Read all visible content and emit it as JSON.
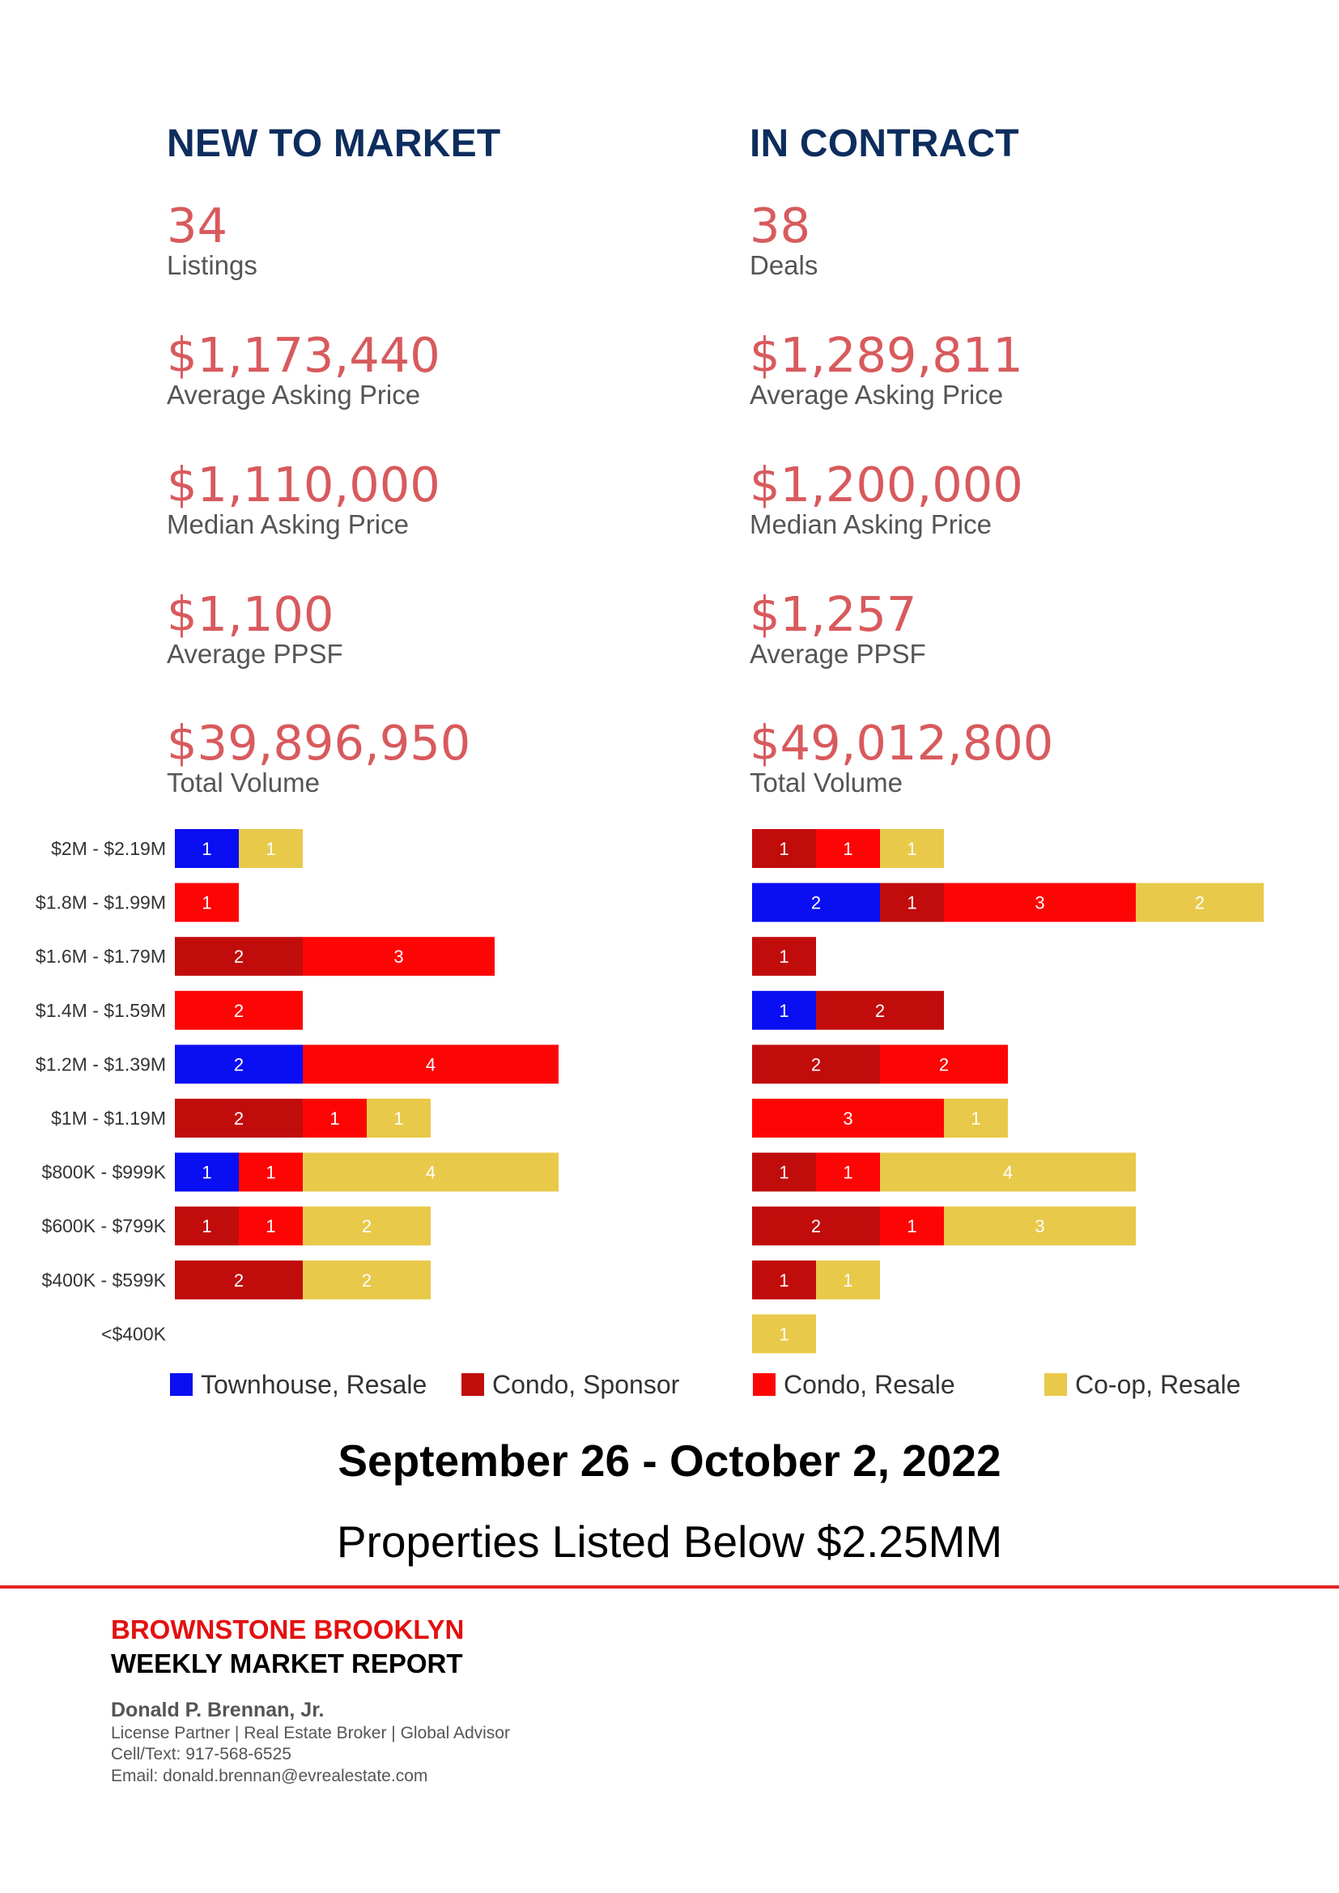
{
  "columns": [
    {
      "title": "NEW TO MARKET",
      "stats": [
        {
          "value": "34",
          "label": "Listings"
        },
        {
          "value": "$1,173,440",
          "label": "Average Asking Price"
        },
        {
          "value": "$1,110,000",
          "label": "Median Asking Price"
        },
        {
          "value": "$1,100",
          "label": "Average PPSF"
        },
        {
          "value": "$39,896,950",
          "label": "Total Volume"
        }
      ]
    },
    {
      "title": "IN CONTRACT",
      "stats": [
        {
          "value": "38",
          "label": "Deals"
        },
        {
          "value": "$1,289,811",
          "label": "Average Asking Price"
        },
        {
          "value": "$1,200,000",
          "label": "Median Asking Price"
        },
        {
          "value": "$1,257",
          "label": "Average PPSF"
        },
        {
          "value": "$49,012,800",
          "label": "Total Volume"
        }
      ]
    }
  ],
  "chart_data": [
    {
      "type": "bar",
      "orientation": "horizontal",
      "stacked": true,
      "categories": [
        "$2M - $2.19M",
        "$1.8M - $1.99M",
        "$1.6M - $1.79M",
        "$1.4M - $1.59M",
        "$1.2M - $1.39M",
        "$1M - $1.19M",
        "$800K - $999K",
        "$600K - $799K",
        "$400K - $599K",
        "<$400K"
      ],
      "series": [
        {
          "name": "Townhouse, Resale",
          "color": "#0a0ef2",
          "values": [
            1,
            0,
            0,
            0,
            2,
            0,
            1,
            0,
            0,
            0
          ]
        },
        {
          "name": "Condo, Sponsor",
          "color": "#c10c0c",
          "values": [
            0,
            0,
            2,
            0,
            0,
            2,
            0,
            1,
            2,
            0
          ]
        },
        {
          "name": "Condo, Resale",
          "color": "#fd0505",
          "values": [
            0,
            1,
            3,
            2,
            4,
            1,
            1,
            1,
            0,
            0
          ]
        },
        {
          "name": "Co-op, Resale",
          "color": "#e8c94a",
          "values": [
            1,
            0,
            0,
            0,
            0,
            1,
            4,
            2,
            2,
            0
          ]
        }
      ]
    },
    {
      "type": "bar",
      "orientation": "horizontal",
      "stacked": true,
      "categories": [
        "$2M - $2.19M",
        "$1.8M - $1.99M",
        "$1.6M - $1.79M",
        "$1.4M - $1.59M",
        "$1.2M - $1.39M",
        "$1M - $1.19M",
        "$800K - $999K",
        "$600K - $799K",
        "$400K - $599K",
        "<$400K"
      ],
      "series": [
        {
          "name": "Townhouse, Resale",
          "color": "#0a0ef2",
          "values": [
            0,
            2,
            0,
            1,
            0,
            0,
            0,
            0,
            0,
            0
          ]
        },
        {
          "name": "Condo, Sponsor",
          "color": "#c10c0c",
          "values": [
            1,
            1,
            1,
            2,
            2,
            0,
            1,
            2,
            1,
            0
          ]
        },
        {
          "name": "Condo, Resale",
          "color": "#fd0505",
          "values": [
            1,
            3,
            0,
            0,
            2,
            3,
            1,
            1,
            0,
            0
          ]
        },
        {
          "name": "Co-op, Resale",
          "color": "#e8c94a",
          "values": [
            1,
            2,
            0,
            0,
            0,
            1,
            4,
            3,
            1,
            1
          ]
        }
      ]
    }
  ],
  "legend": [
    {
      "label": "Townhouse, Resale",
      "color": "#0a0ef2"
    },
    {
      "label": "Condo, Sponsor",
      "color": "#c10c0c"
    },
    {
      "label": "Condo, Resale",
      "color": "#fd0505"
    },
    {
      "label": "Co-op, Resale",
      "color": "#e8c94a"
    }
  ],
  "footer": {
    "date_range": "September 26 - October 2, 2022",
    "subtitle": "Properties Listed Below $2.25MM",
    "brand_line1": "BROWNSTONE BROOKLYN",
    "brand_line2": "WEEKLY MARKET REPORT",
    "agent_name": "Donald P. Brennan, Jr.",
    "agent_title": "License Partner | Real Estate Broker | Global Advisor",
    "phone": "Cell/Text: 917-568-6525",
    "email": "Email: donald.brennan@evrealestate.com"
  }
}
